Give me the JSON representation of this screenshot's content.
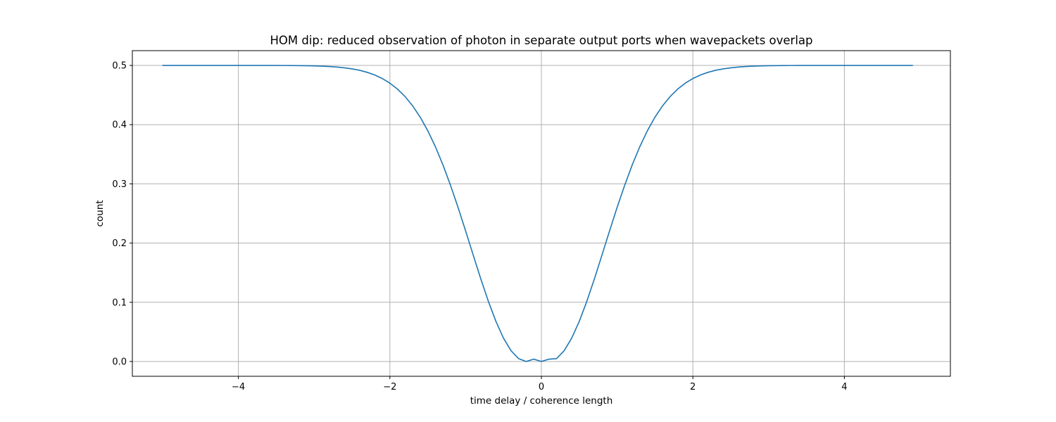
{
  "chart_data": {
    "type": "line",
    "title": "HOM dip: reduced observation of photon in separate output ports when wavepackets overlap",
    "xlabel": "time delay / coherence length",
    "ylabel": "count",
    "xlim": [
      -5.4,
      5.4
    ],
    "ylim": [
      -0.025,
      0.525
    ],
    "x_ticks": [
      -4,
      -2,
      0,
      2,
      4
    ],
    "x_tick_labels": [
      "−4",
      "−2",
      "0",
      "2",
      "4"
    ],
    "y_ticks": [
      0.0,
      0.1,
      0.2,
      0.3,
      0.4,
      0.5
    ],
    "y_tick_labels": [
      "0.0",
      "0.1",
      "0.2",
      "0.3",
      "0.4",
      "0.5"
    ],
    "grid": true,
    "color": "#1f77b4",
    "x_range": [
      -5.0,
      4.9
    ],
    "x_step": 0.1,
    "series": [
      {
        "values": [
          0.5,
          0.5,
          0.5,
          0.5,
          0.5,
          0.5,
          0.5,
          0.5,
          0.5,
          0.5,
          0.5,
          0.5,
          0.5,
          0.5,
          0.5,
          0.5,
          0.4999,
          0.4998,
          0.4997,
          0.4995,
          0.4992,
          0.4988,
          0.4982,
          0.4973,
          0.496,
          0.4942,
          0.4918,
          0.4884,
          0.4839,
          0.4779,
          0.4701,
          0.4601,
          0.4475,
          0.4318,
          0.4127,
          0.3898,
          0.363,
          0.3322,
          0.2977,
          0.2602,
          0.2204,
          0.1797,
          0.1395,
          0.1016,
          0.0677,
          0.0394,
          0.0181,
          0.0048,
          0.0,
          0.0039,
          0.0,
          0.0039,
          0.0048,
          0.0181,
          0.0394,
          0.0677,
          0.1016,
          0.1395,
          0.1797,
          0.2204,
          0.2602,
          0.2977,
          0.3322,
          0.363,
          0.3898,
          0.4127,
          0.4318,
          0.4475,
          0.4601,
          0.4701,
          0.4779,
          0.4839,
          0.4884,
          0.4918,
          0.4942,
          0.496,
          0.4973,
          0.4982,
          0.4988,
          0.4992,
          0.4995,
          0.4997,
          0.4998,
          0.4999,
          0.5,
          0.5,
          0.5,
          0.5,
          0.5,
          0.5,
          0.5,
          0.5,
          0.5,
          0.5,
          0.5,
          0.5,
          0.5,
          0.5,
          0.5,
          0.5
        ]
      }
    ]
  }
}
